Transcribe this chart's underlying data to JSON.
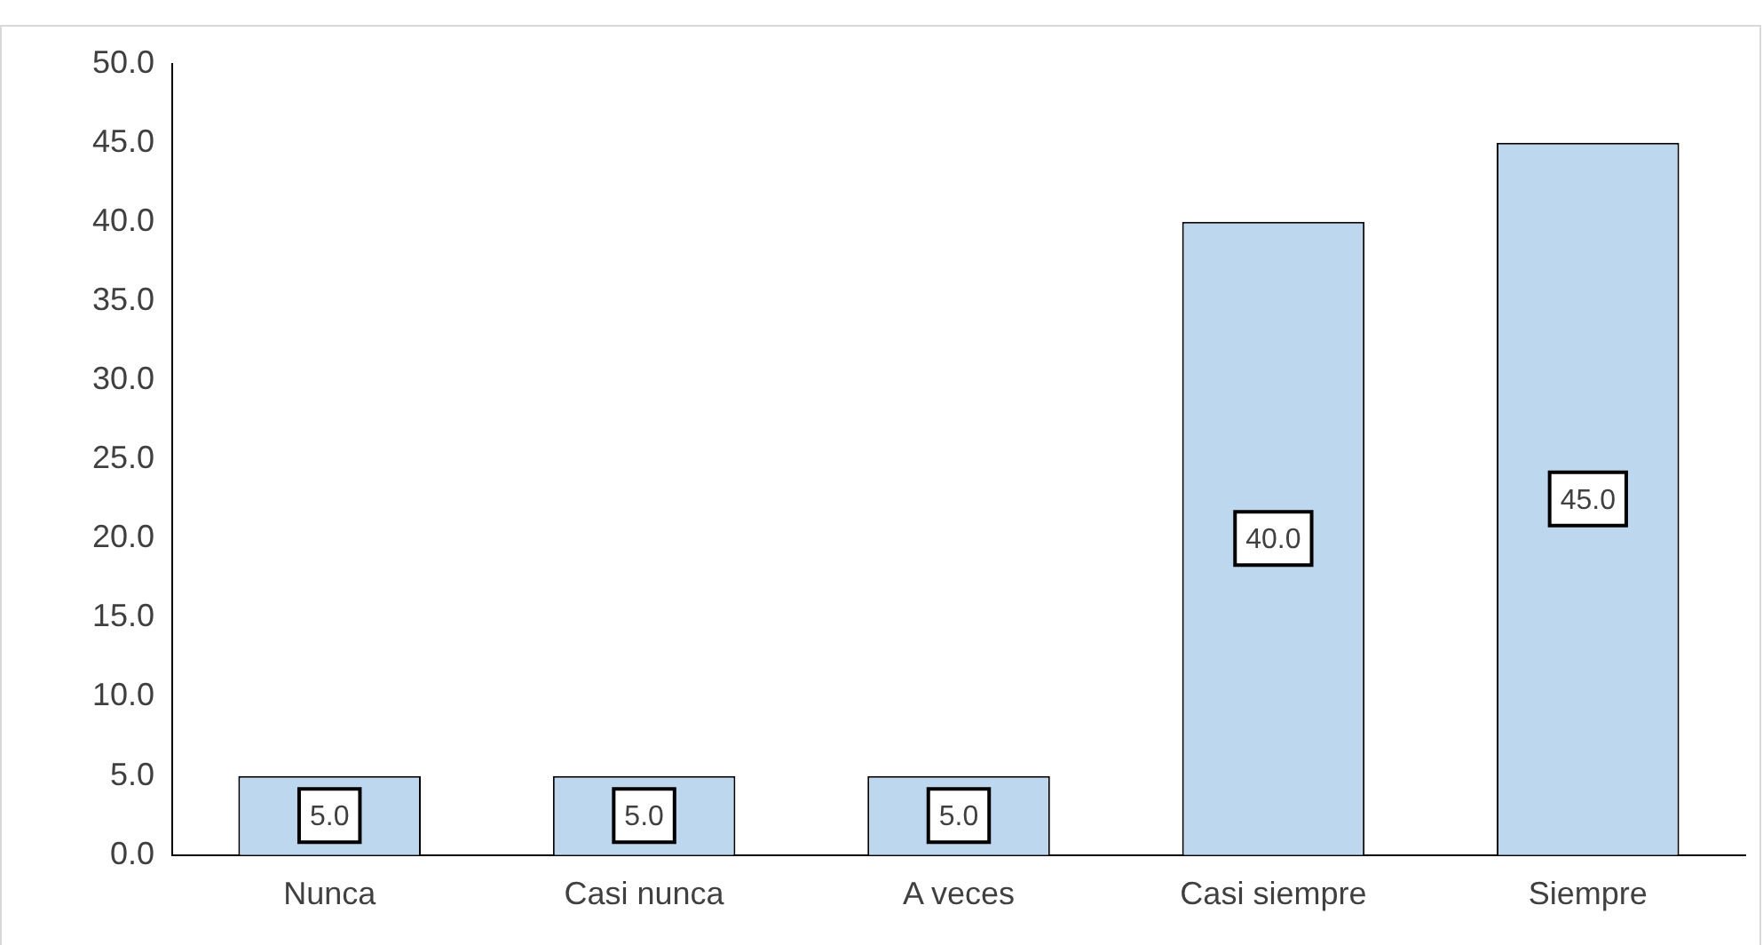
{
  "chart_data": {
    "type": "bar",
    "categories": [
      "Nunca",
      "Casi nunca",
      "A veces",
      "Casi siempre",
      "Siempre"
    ],
    "values": [
      5,
      5,
      5,
      40,
      45
    ],
    "color": "#bdd7ee",
    "value_labels": [
      "5.0",
      "5.0",
      "5.0",
      "40.0",
      "45.0"
    ],
    "ylim": [
      0,
      50
    ],
    "yticks": [
      {
        "value": 0,
        "label": "0.0"
      },
      {
        "value": 5,
        "label": "5.0"
      },
      {
        "value": 10,
        "label": "10.0"
      },
      {
        "value": 15,
        "label": "15.0"
      },
      {
        "value": 20,
        "label": "20.0"
      },
      {
        "value": 25,
        "label": "25.0"
      },
      {
        "value": 30,
        "label": "30.0"
      },
      {
        "value": 35,
        "label": "35.0"
      },
      {
        "value": 40,
        "label": "40.0"
      },
      {
        "value": 45,
        "label": "45.0"
      },
      {
        "value": 50,
        "label": "50.0"
      }
    ],
    "grid": false,
    "legend": false
  }
}
